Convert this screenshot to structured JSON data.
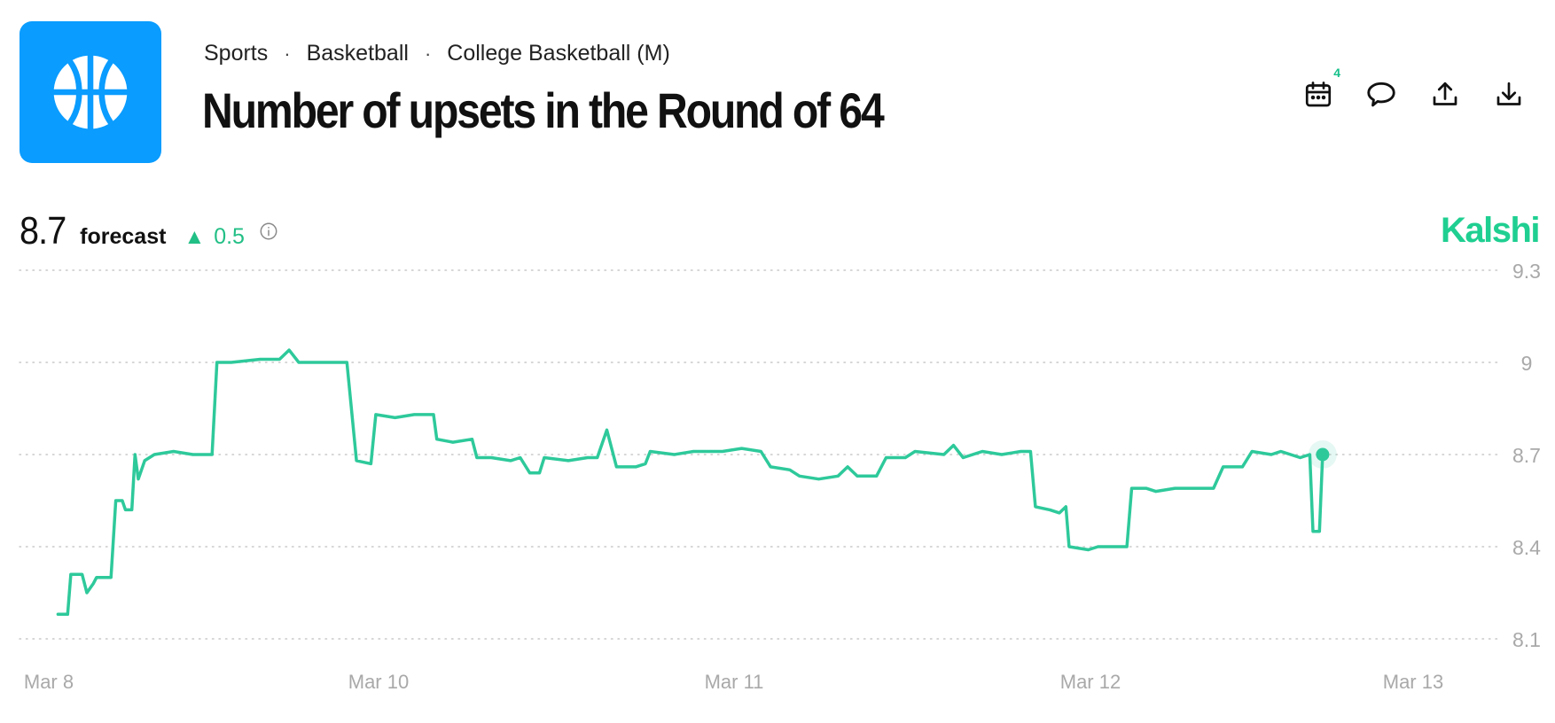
{
  "breadcrumb": [
    "Sports",
    "Basketball",
    "College Basketball (M)"
  ],
  "breadcrumb_separator": "·",
  "title": "Number of upsets in the Round of 64",
  "logo": {
    "icon": "basketball-icon",
    "color": "#0a9cff"
  },
  "toolbar": {
    "icons": [
      "calendar-icon",
      "comment-icon",
      "share-icon",
      "download-icon"
    ],
    "calendar_badge": "4"
  },
  "forecast": {
    "value": "8.7",
    "label": "forecast",
    "change_direction": "up",
    "change": "0.5"
  },
  "brand": "Kalshi",
  "colors": {
    "line": "#2ec99b",
    "accent": "#22bf86",
    "brand": "#1fcf91"
  },
  "chart_data": {
    "type": "line",
    "title": "",
    "xlabel": "",
    "ylabel": "",
    "ylim": [
      8.1,
      9.3
    ],
    "yticks": [
      "9.3",
      "9",
      "8.7",
      "8.4",
      "8.1"
    ],
    "xticks": [
      "Mar 8",
      "Mar 10",
      "Mar 11",
      "Mar 12",
      "Mar 13"
    ],
    "grid": true,
    "series": [
      {
        "values": [
          [
            "2025-03-08T00:00",
            8.18
          ],
          [
            "2025-03-08T01:00",
            8.18
          ],
          [
            "2025-03-08T01:20",
            8.31
          ],
          [
            "2025-03-08T02:30",
            8.31
          ],
          [
            "2025-03-08T03:00",
            8.25
          ],
          [
            "2025-03-08T03:40",
            8.28
          ],
          [
            "2025-03-08T04:00",
            8.3
          ],
          [
            "2025-03-08T05:30",
            8.3
          ],
          [
            "2025-03-08T06:00",
            8.55
          ],
          [
            "2025-03-08T06:40",
            8.55
          ],
          [
            "2025-03-08T07:00",
            8.52
          ],
          [
            "2025-03-08T07:40",
            8.52
          ],
          [
            "2025-03-08T08:00",
            8.7
          ],
          [
            "2025-03-08T08:20",
            8.62
          ],
          [
            "2025-03-08T09:00",
            8.68
          ],
          [
            "2025-03-08T10:00",
            8.7
          ],
          [
            "2025-03-08T12:00",
            8.71
          ],
          [
            "2025-03-08T14:00",
            8.7
          ],
          [
            "2025-03-08T16:00",
            8.7
          ],
          [
            "2025-03-08T16:30",
            9.0
          ],
          [
            "2025-03-08T18:00",
            9.0
          ],
          [
            "2025-03-08T21:00",
            9.01
          ],
          [
            "2025-03-08T23:00",
            9.01
          ],
          [
            "2025-03-09T00:00",
            9.04
          ],
          [
            "2025-03-09T01:00",
            9.0
          ],
          [
            "2025-03-09T04:00",
            9.0
          ],
          [
            "2025-03-09T06:00",
            9.0
          ],
          [
            "2025-03-09T07:00",
            8.68
          ],
          [
            "2025-03-09T08:30",
            8.67
          ],
          [
            "2025-03-09T09:00",
            8.83
          ],
          [
            "2025-03-09T11:00",
            8.82
          ],
          [
            "2025-03-09T13:00",
            8.83
          ],
          [
            "2025-03-09T15:00",
            8.83
          ],
          [
            "2025-03-09T15:20",
            8.75
          ],
          [
            "2025-03-09T17:00",
            8.74
          ],
          [
            "2025-03-09T19:00",
            8.75
          ],
          [
            "2025-03-09T19:30",
            8.69
          ],
          [
            "2025-03-09T21:00",
            8.69
          ],
          [
            "2025-03-09T23:00",
            8.68
          ],
          [
            "2025-03-10T00:00",
            8.69
          ],
          [
            "2025-03-10T01:00",
            8.64
          ],
          [
            "2025-03-10T02:00",
            8.64
          ],
          [
            "2025-03-10T02:30",
            8.69
          ],
          [
            "2025-03-10T05:00",
            8.68
          ],
          [
            "2025-03-10T07:00",
            8.69
          ],
          [
            "2025-03-10T08:00",
            8.69
          ],
          [
            "2025-03-10T09:00",
            8.78
          ],
          [
            "2025-03-10T10:00",
            8.66
          ],
          [
            "2025-03-10T12:00",
            8.66
          ],
          [
            "2025-03-10T13:00",
            8.67
          ],
          [
            "2025-03-10T13:30",
            8.71
          ],
          [
            "2025-03-10T16:00",
            8.7
          ],
          [
            "2025-03-10T18:00",
            8.71
          ],
          [
            "2025-03-10T21:00",
            8.71
          ],
          [
            "2025-03-10T23:00",
            8.72
          ],
          [
            "2025-03-11T01:00",
            8.71
          ],
          [
            "2025-03-11T02:00",
            8.66
          ],
          [
            "2025-03-11T04:00",
            8.65
          ],
          [
            "2025-03-11T05:00",
            8.63
          ],
          [
            "2025-03-11T07:00",
            8.62
          ],
          [
            "2025-03-11T09:00",
            8.63
          ],
          [
            "2025-03-11T10:00",
            8.66
          ],
          [
            "2025-03-11T11:00",
            8.63
          ],
          [
            "2025-03-11T13:00",
            8.63
          ],
          [
            "2025-03-11T14:00",
            8.69
          ],
          [
            "2025-03-11T16:00",
            8.69
          ],
          [
            "2025-03-11T17:00",
            8.71
          ],
          [
            "2025-03-11T20:00",
            8.7
          ],
          [
            "2025-03-11T21:00",
            8.73
          ],
          [
            "2025-03-11T22:00",
            8.69
          ],
          [
            "2025-03-12T00:00",
            8.71
          ],
          [
            "2025-03-12T02:00",
            8.7
          ],
          [
            "2025-03-12T04:00",
            8.71
          ],
          [
            "2025-03-12T05:00",
            8.71
          ],
          [
            "2025-03-12T05:30",
            8.53
          ],
          [
            "2025-03-12T07:00",
            8.52
          ],
          [
            "2025-03-12T08:00",
            8.51
          ],
          [
            "2025-03-12T08:40",
            8.53
          ],
          [
            "2025-03-12T09:00",
            8.4
          ],
          [
            "2025-03-12T11:00",
            8.39
          ],
          [
            "2025-03-12T12:00",
            8.4
          ],
          [
            "2025-03-12T15:00",
            8.4
          ],
          [
            "2025-03-12T15:30",
            8.59
          ],
          [
            "2025-03-12T17:00",
            8.59
          ],
          [
            "2025-03-12T18:00",
            8.58
          ],
          [
            "2025-03-12T20:00",
            8.59
          ],
          [
            "2025-03-12T22:00",
            8.59
          ],
          [
            "2025-03-13T00:00",
            8.59
          ],
          [
            "2025-03-13T01:00",
            8.66
          ],
          [
            "2025-03-13T03:00",
            8.66
          ],
          [
            "2025-03-13T04:00",
            8.71
          ],
          [
            "2025-03-13T06:00",
            8.7
          ],
          [
            "2025-03-13T07:00",
            8.71
          ],
          [
            "2025-03-13T09:00",
            8.69
          ],
          [
            "2025-03-13T10:00",
            8.7
          ],
          [
            "2025-03-13T10:20",
            8.45
          ],
          [
            "2025-03-13T11:00",
            8.45
          ],
          [
            "2025-03-13T11:20",
            8.7
          ]
        ]
      }
    ]
  }
}
